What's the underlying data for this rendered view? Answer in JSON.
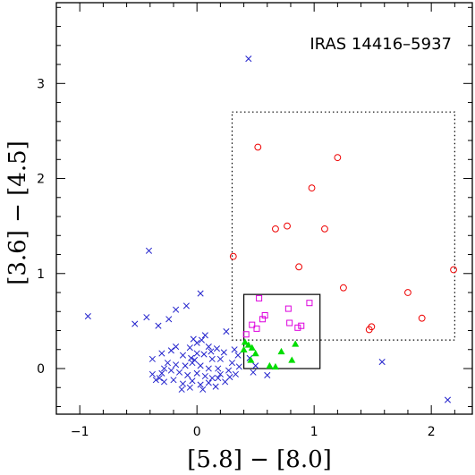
{
  "chart_data": {
    "type": "scatter",
    "title": "IRAS 14416–5937",
    "xlabel": "[5.8] − [8.0]",
    "ylabel": "[3.6] − [4.5]",
    "xlim": [
      -1.2,
      2.35
    ],
    "ylim": [
      -0.48,
      3.85
    ],
    "xticks": [
      -1,
      0,
      1,
      2
    ],
    "yticks": [
      0,
      1,
      2,
      3
    ],
    "grid": false,
    "colors": {
      "cross": "#2222cc",
      "circle": "#ee0000",
      "square": "#dd00dd",
      "triangle": "#00dd00"
    },
    "regions": [
      {
        "style": "dotted",
        "x": [
          0.3,
          2.2
        ],
        "y": [
          0.3,
          2.7
        ]
      },
      {
        "style": "solid",
        "x": [
          0.4,
          1.05
        ],
        "y": [
          0.0,
          0.78
        ]
      }
    ],
    "series": [
      {
        "marker": "cross",
        "points": [
          [
            0.44,
            3.26
          ],
          [
            -0.41,
            1.24
          ],
          [
            0.03,
            0.79
          ],
          [
            -0.93,
            0.55
          ],
          [
            -0.43,
            0.54
          ],
          [
            -0.53,
            0.47
          ],
          [
            -0.18,
            0.62
          ],
          [
            -0.09,
            0.66
          ],
          [
            -0.24,
            0.52
          ],
          [
            -0.33,
            0.45
          ],
          [
            0.25,
            0.39
          ],
          [
            0.07,
            0.35
          ],
          [
            0.04,
            0.3
          ],
          [
            0.0,
            0.27
          ],
          [
            -0.03,
            0.31
          ],
          [
            -0.06,
            0.22
          ],
          [
            -0.18,
            0.23
          ],
          [
            -0.22,
            0.19
          ],
          [
            -0.3,
            0.16
          ],
          [
            -0.38,
            0.1
          ],
          [
            0.1,
            0.23
          ],
          [
            0.17,
            0.21
          ],
          [
            0.23,
            0.17
          ],
          [
            0.32,
            0.2
          ],
          [
            0.35,
            0.14
          ],
          [
            -0.12,
            0.14
          ],
          [
            -0.05,
            0.11
          ],
          [
            0.0,
            0.16
          ],
          [
            0.06,
            0.15
          ],
          [
            0.13,
            0.1
          ],
          [
            0.2,
            0.1
          ],
          [
            0.3,
            0.06
          ],
          [
            0.36,
            0.02
          ],
          [
            -0.25,
            0.06
          ],
          [
            -0.18,
            0.04
          ],
          [
            -0.1,
            0.03
          ],
          [
            -0.04,
            0.06
          ],
          [
            0.03,
            0.03
          ],
          [
            0.1,
            0.0
          ],
          [
            0.18,
            0.0
          ],
          [
            0.27,
            -0.02
          ],
          [
            0.33,
            -0.06
          ],
          [
            -0.3,
            -0.05
          ],
          [
            -0.22,
            -0.02
          ],
          [
            -0.15,
            -0.04
          ],
          [
            -0.08,
            -0.07
          ],
          [
            0.0,
            -0.05
          ],
          [
            0.07,
            -0.08
          ],
          [
            0.13,
            -0.1
          ],
          [
            0.2,
            -0.06
          ],
          [
            0.28,
            -0.09
          ],
          [
            -0.35,
            -0.12
          ],
          [
            -0.28,
            -0.14
          ],
          [
            -0.2,
            -0.12
          ],
          [
            -0.12,
            -0.16
          ],
          [
            -0.04,
            -0.13
          ],
          [
            0.03,
            -0.17
          ],
          [
            0.1,
            -0.15
          ],
          [
            0.16,
            -0.19
          ],
          [
            0.24,
            -0.14
          ],
          [
            -0.38,
            -0.06
          ],
          [
            -0.32,
            -0.1
          ],
          [
            -0.06,
            -0.2
          ],
          [
            0.05,
            -0.22
          ],
          [
            -0.13,
            -0.22
          ],
          [
            0.18,
            -0.1
          ],
          [
            0.48,
            -0.04
          ],
          [
            0.6,
            -0.07
          ],
          [
            0.5,
            0.03
          ],
          [
            0.45,
            0.11
          ],
          [
            1.58,
            0.07
          ],
          [
            2.14,
            -0.33
          ],
          [
            -0.02,
            0.09
          ],
          [
            0.12,
            0.18
          ],
          [
            -0.28,
            0.0
          ]
        ]
      },
      {
        "marker": "circle",
        "points": [
          [
            0.52,
            2.33
          ],
          [
            1.2,
            2.22
          ],
          [
            0.98,
            1.9
          ],
          [
            0.77,
            1.5
          ],
          [
            0.67,
            1.47
          ],
          [
            1.09,
            1.47
          ],
          [
            0.31,
            1.18
          ],
          [
            0.87,
            1.07
          ],
          [
            2.19,
            1.04
          ],
          [
            1.25,
            0.85
          ],
          [
            1.8,
            0.8
          ],
          [
            1.92,
            0.53
          ],
          [
            1.49,
            0.44
          ],
          [
            1.47,
            0.41
          ]
        ]
      },
      {
        "marker": "square",
        "points": [
          [
            0.53,
            0.74
          ],
          [
            0.96,
            0.69
          ],
          [
            0.78,
            0.63
          ],
          [
            0.58,
            0.56
          ],
          [
            0.56,
            0.52
          ],
          [
            0.47,
            0.46
          ],
          [
            0.51,
            0.42
          ],
          [
            0.79,
            0.48
          ],
          [
            0.89,
            0.45
          ],
          [
            0.86,
            0.43
          ],
          [
            0.42,
            0.36
          ]
        ]
      },
      {
        "marker": "triangle",
        "points": [
          [
            0.41,
            0.28
          ],
          [
            0.44,
            0.25
          ],
          [
            0.4,
            0.2
          ],
          [
            0.47,
            0.22
          ],
          [
            0.84,
            0.26
          ],
          [
            0.72,
            0.18
          ],
          [
            0.81,
            0.09
          ],
          [
            0.46,
            0.09
          ],
          [
            0.62,
            0.03
          ],
          [
            0.67,
            0.02
          ],
          [
            0.5,
            0.16
          ]
        ]
      }
    ]
  }
}
